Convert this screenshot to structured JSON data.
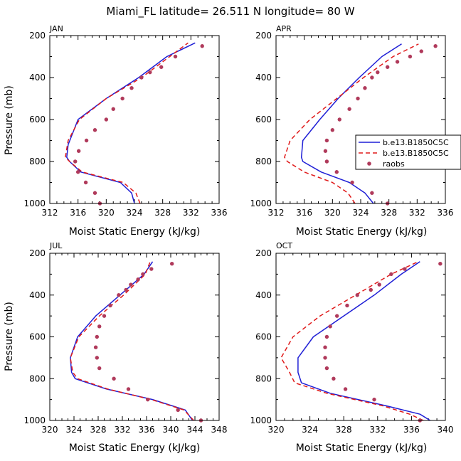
{
  "page": {
    "title": "Miami_FL  latitude= 26.511 N longitude= 80 W"
  },
  "chart_data": [
    {
      "type": "line",
      "panel": "JAN",
      "xlabel": "Moist Static Energy (kJ/kg)",
      "ylabel": "Pressure (mb)",
      "xlim": [
        312,
        336
      ],
      "xticks": [
        312,
        316,
        320,
        324,
        328,
        332,
        336
      ],
      "ylim": [
        1000,
        200
      ],
      "yticks": [
        200,
        400,
        600,
        800,
        1000
      ],
      "series": [
        {
          "name": "b.e13.B1850C5C",
          "style": "solid",
          "color": "#1f1fd6",
          "x": [
            324.0,
            323.6,
            322.0,
            316.4,
            314.8,
            314.4,
            314.6,
            316.0,
            320.0,
            324.6,
            328.6,
            332.6
          ],
          "y": [
            1000,
            950,
            900,
            850,
            800,
            780,
            720,
            600,
            500,
            400,
            300,
            235
          ]
        },
        {
          "name": "b.e13.B1850C5C",
          "style": "dashed",
          "color": "#e01a1a",
          "x": [
            324.8,
            324.2,
            322.4,
            316.6,
            314.8,
            314.2,
            314.6,
            316.2,
            320.0,
            325.0,
            329.0,
            331.6
          ],
          "y": [
            1000,
            950,
            900,
            850,
            800,
            780,
            700,
            600,
            500,
            400,
            300,
            235
          ]
        },
        {
          "name": "raobs",
          "style": "dots",
          "color": "#b03a5b",
          "x": [
            319.1,
            318.4,
            317.1,
            316.0,
            315.6,
            316.1,
            317.2,
            318.4,
            320.0,
            321.0,
            322.3,
            323.6,
            325.0,
            326.2,
            327.8,
            329.8,
            333.6
          ],
          "y": [
            1000,
            950,
            900,
            850,
            800,
            750,
            700,
            650,
            600,
            550,
            500,
            450,
            400,
            375,
            350,
            300,
            250
          ]
        }
      ]
    },
    {
      "type": "line",
      "panel": "APR",
      "xlabel": "Moist Static Energy (kJ/kg)",
      "ylabel": "Pressure (mb)",
      "xlim": [
        312,
        336
      ],
      "xticks": [
        312,
        316,
        320,
        324,
        328,
        332,
        336
      ],
      "ylim": [
        1000,
        200
      ],
      "yticks": [
        200,
        400,
        600,
        800,
        1000
      ],
      "series": [
        {
          "name": "b.e13.B1850C5C",
          "style": "solid",
          "color": "#1f1fd6",
          "x": [
            325.8,
            324.6,
            322.4,
            318.4,
            315.8,
            315.6,
            315.8,
            318.2,
            320.8,
            323.8,
            327.0,
            329.8
          ],
          "y": [
            1000,
            950,
            900,
            850,
            800,
            780,
            700,
            600,
            500,
            400,
            300,
            240
          ]
        },
        {
          "name": "b.e13.B1850C5C",
          "style": "dashed",
          "color": "#e01a1a",
          "x": [
            323.2,
            322.2,
            320.0,
            316.0,
            313.6,
            313.2,
            314.0,
            316.8,
            320.6,
            324.4,
            328.6,
            332.2
          ],
          "y": [
            1000,
            950,
            900,
            850,
            800,
            780,
            700,
            600,
            500,
            400,
            300,
            240
          ]
        },
        {
          "name": "raobs",
          "style": "dots",
          "color": "#b03a5b",
          "x": [
            327.8,
            325.6,
            322.8,
            320.6,
            319.2,
            319.0,
            319.2,
            320.0,
            321.0,
            322.4,
            323.6,
            324.6,
            325.6,
            326.4,
            327.8,
            329.2,
            331.0,
            332.6,
            334.6
          ],
          "y": [
            1000,
            950,
            900,
            850,
            800,
            750,
            700,
            650,
            600,
            550,
            500,
            450,
            400,
            375,
            350,
            325,
            300,
            275,
            250
          ]
        }
      ],
      "legend": {
        "placement": "right",
        "entries": [
          "b.e13.B1850C5C",
          "b.e13.B1850C5C",
          "raobs"
        ]
      }
    },
    {
      "type": "line",
      "panel": "JUL",
      "xlabel": "Moist Static Energy (kJ/kg)",
      "ylabel": "Pressure (mb)",
      "xlim": [
        320,
        348
      ],
      "xticks": [
        320,
        324,
        328,
        332,
        336,
        340,
        344,
        348
      ],
      "ylim": [
        1000,
        200
      ],
      "yticks": [
        200,
        400,
        600,
        800,
        1000
      ],
      "series": [
        {
          "name": "b.e13.B1850C5C",
          "style": "solid",
          "color": "#1f1fd6",
          "x": [
            343.6,
            342.4,
            337.0,
            329.4,
            324.2,
            323.6,
            323.4,
            324.6,
            327.6,
            331.6,
            335.6,
            337.0
          ],
          "y": [
            1000,
            950,
            900,
            850,
            800,
            770,
            700,
            600,
            500,
            400,
            300,
            240
          ]
        },
        {
          "name": "b.e13.B1850C5C",
          "style": "dashed",
          "color": "#e01a1a",
          "x": [
            343.8,
            342.2,
            336.8,
            329.6,
            324.6,
            323.8,
            323.4,
            324.8,
            328.2,
            332.2,
            335.8,
            336.6
          ],
          "y": [
            1000,
            950,
            900,
            850,
            800,
            770,
            700,
            600,
            500,
            400,
            300,
            240
          ]
        },
        {
          "name": "raobs",
          "style": "dots",
          "color": "#b03a5b",
          "x": [
            345.0,
            341.2,
            336.2,
            333.0,
            330.6,
            328.2,
            327.8,
            327.6,
            327.8,
            328.2,
            329.0,
            330.0,
            331.4,
            332.6,
            333.4,
            334.6,
            335.4,
            336.8,
            340.2
          ],
          "y": [
            1000,
            950,
            900,
            850,
            800,
            750,
            700,
            650,
            600,
            550,
            500,
            450,
            400,
            375,
            350,
            325,
            300,
            275,
            250
          ]
        }
      ]
    },
    {
      "type": "line",
      "panel": "OCT",
      "xlabel": "Moist Static Energy (kJ/kg)",
      "ylabel": "Pressure (mb)",
      "xlim": [
        320,
        340
      ],
      "xticks": [
        320,
        324,
        328,
        332,
        336,
        340
      ],
      "ylim": [
        1000,
        200
      ],
      "yticks": [
        200,
        400,
        600,
        800,
        1000
      ],
      "series": [
        {
          "name": "b.e13.B1850C5C",
          "style": "solid",
          "color": "#1f1fd6",
          "x": [
            338.2,
            337.0,
            333.0,
            326.4,
            323.0,
            322.6,
            322.6,
            324.4,
            328.0,
            331.6,
            334.8,
            337.0
          ],
          "y": [
            1000,
            970,
            930,
            870,
            820,
            770,
            700,
            600,
            500,
            400,
            300,
            240
          ]
        },
        {
          "name": "b.e13.B1850C5C",
          "style": "dashed",
          "color": "#e01a1a",
          "x": [
            337.4,
            335.8,
            332.6,
            326.0,
            322.2,
            321.6,
            320.6,
            322.0,
            325.2,
            329.4,
            333.6,
            336.8
          ],
          "y": [
            1000,
            970,
            930,
            870,
            820,
            770,
            700,
            600,
            500,
            400,
            300,
            240
          ]
        },
        {
          "name": "raobs",
          "style": "dots",
          "color": "#b03a5b",
          "x": [
            337.0,
            331.6,
            328.2,
            326.8,
            326.0,
            325.8,
            325.8,
            326.0,
            326.4,
            327.2,
            328.4,
            329.6,
            331.2,
            332.2,
            333.6,
            335.2,
            339.4
          ],
          "y": [
            1000,
            900,
            850,
            800,
            750,
            700,
            650,
            600,
            550,
            500,
            450,
            400,
            375,
            350,
            300,
            275,
            250
          ]
        }
      ]
    }
  ]
}
